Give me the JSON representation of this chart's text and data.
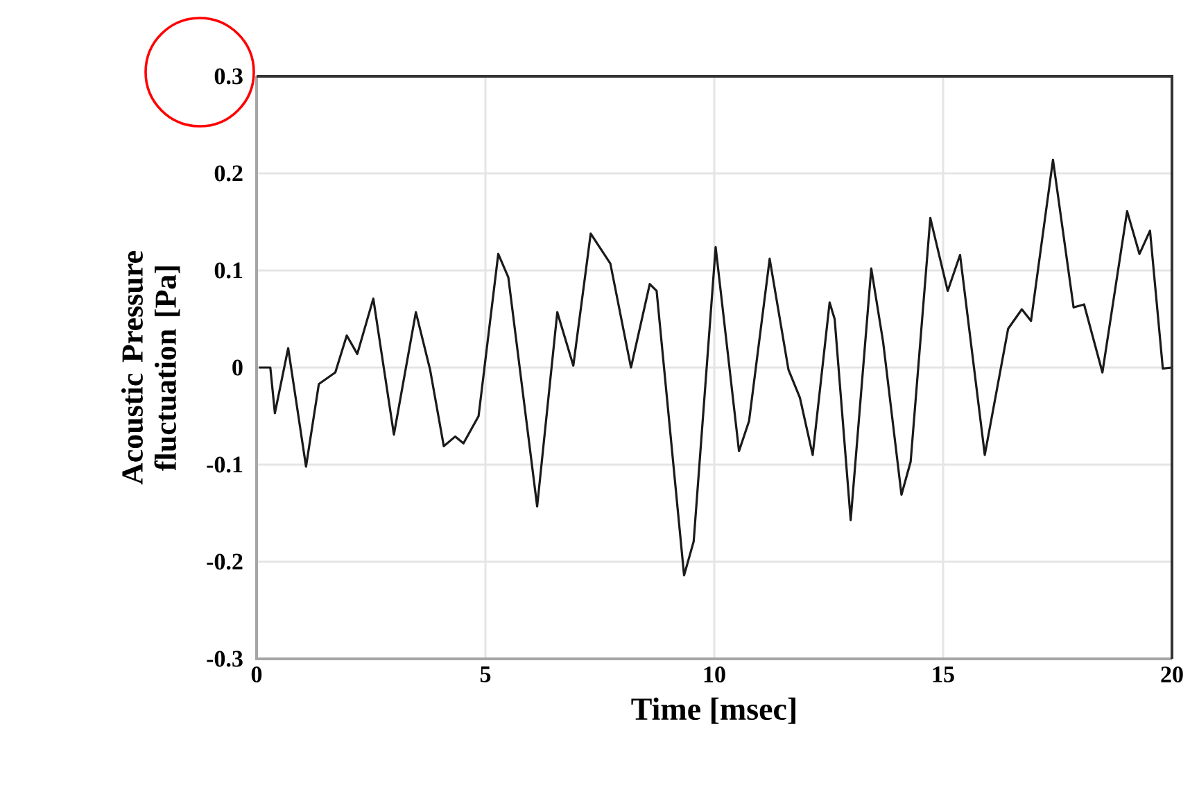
{
  "chart_data": {
    "type": "line",
    "xlabel": "Time  [msec]",
    "ylabel": "Acoustic Pressure fluctuation [Pa]",
    "xlim": [
      0,
      20
    ],
    "ylim": [
      -0.3,
      0.3
    ],
    "xticks": [
      0,
      5,
      10,
      15,
      20
    ],
    "yticks": [
      -0.3,
      -0.2,
      -0.1,
      0,
      0.1,
      0.2,
      0.3
    ],
    "grid": true,
    "series": [
      {
        "color": "#1a1a1a",
        "x": [
          0.05,
          0.3,
          0.4,
          0.69,
          1.08,
          1.36,
          1.72,
          1.97,
          2.2,
          2.55,
          3.0,
          3.48,
          3.79,
          4.09,
          4.34,
          4.52,
          4.85,
          5.28,
          5.5,
          6.13,
          6.57,
          6.92,
          7.3,
          7.73,
          8.18,
          8.59,
          8.74,
          9.34,
          9.55,
          10.03,
          10.54,
          10.76,
          11.21,
          11.62,
          11.87,
          12.15,
          12.52,
          12.63,
          12.98,
          13.43,
          13.69,
          14.09,
          14.29,
          14.72,
          15.1,
          15.37,
          15.91,
          16.42,
          16.72,
          16.92,
          17.4,
          17.85,
          18.08,
          18.48,
          19.02,
          19.29,
          19.52,
          19.8,
          20.0
        ],
        "values": [
          0,
          0,
          -0.047,
          0.02,
          -0.102,
          -0.017,
          -0.005,
          0.033,
          0.014,
          0.071,
          -0.069,
          0.057,
          -0.002,
          -0.081,
          -0.071,
          -0.078,
          -0.05,
          0.117,
          0.093,
          -0.143,
          0.057,
          0.002,
          0.138,
          0.107,
          0,
          0.086,
          0.079,
          -0.214,
          -0.179,
          0.124,
          -0.086,
          -0.055,
          0.112,
          -0.002,
          -0.031,
          -0.09,
          0.067,
          0.05,
          -0.157,
          0.102,
          0.026,
          -0.131,
          -0.097,
          0.154,
          0.079,
          0.116,
          -0.09,
          0.04,
          0.06,
          0.048,
          0.214,
          0.062,
          0.065,
          -0.005,
          0.161,
          0.117,
          0.141,
          -0.001,
          0
        ]
      }
    ]
  }
}
